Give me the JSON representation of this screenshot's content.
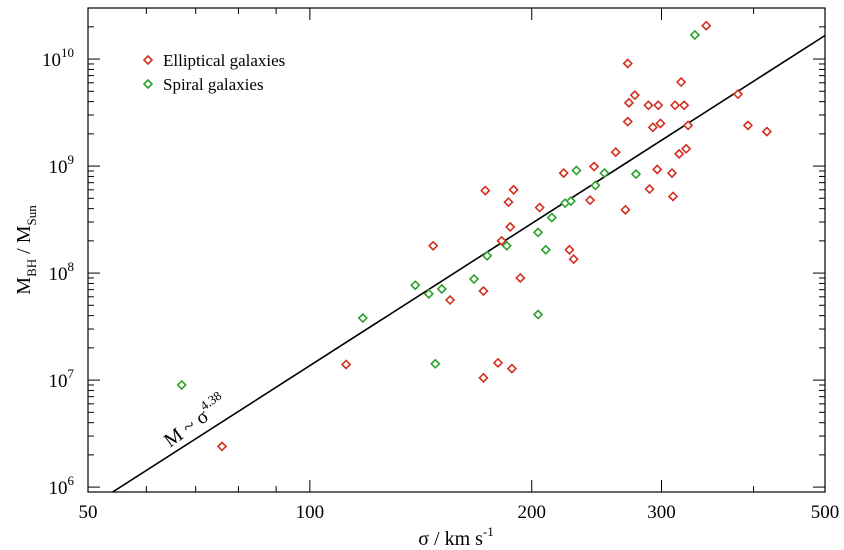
{
  "chart_data": {
    "type": "scatter",
    "title": "",
    "xlabel": "σ / km s",
    "xlabel_sup": "-1",
    "ylabel_main": "M",
    "ylabel_main_sub": "BH",
    "ylabel_sep": " / M",
    "ylabel_sep_sub": "Sun",
    "x_scale": "log",
    "y_scale": "log",
    "xlim": [
      50,
      500
    ],
    "ylim": [
      900000,
      30000000000
    ],
    "x_ticks": [
      {
        "value": 50,
        "label": "50"
      },
      {
        "value": 100,
        "label": "100"
      },
      {
        "value": 200,
        "label": "200"
      },
      {
        "value": 300,
        "label": "300"
      },
      {
        "value": 500,
        "label": "500"
      }
    ],
    "y_ticks": [
      {
        "value": 1000000,
        "base": "10",
        "exp": "6"
      },
      {
        "value": 10000000,
        "base": "10",
        "exp": "7"
      },
      {
        "value": 100000000,
        "base": "10",
        "exp": "8"
      },
      {
        "value": 1000000000,
        "base": "10",
        "exp": "9"
      },
      {
        "value": 10000000000,
        "base": "10",
        "exp": "10"
      }
    ],
    "grid": false,
    "legend_position": "top-left",
    "fit_line": {
      "label_base": "M ~ σ",
      "label_exp": "4.38",
      "exponent": 4.38,
      "points": [
        [
          54,
          900000
        ],
        [
          500,
          16600000000
        ]
      ]
    },
    "series": [
      {
        "name": "Elliptical galaxies",
        "color": "#d32f1e",
        "marker": "diamond",
        "points": [
          [
            76,
            2400000
          ],
          [
            112,
            14000000
          ],
          [
            147,
            180000000
          ],
          [
            155,
            56000000
          ],
          [
            173,
            590000000
          ],
          [
            172,
            68000000
          ],
          [
            172,
            10500000
          ],
          [
            180,
            14500000
          ],
          [
            182,
            200000000
          ],
          [
            186,
            460000000
          ],
          [
            187,
            270000000
          ],
          [
            189,
            600000000
          ],
          [
            188,
            12800000
          ],
          [
            193,
            90000000
          ],
          [
            205,
            410000000
          ],
          [
            221,
            860000000
          ],
          [
            225,
            165000000
          ],
          [
            228,
            135000000
          ],
          [
            240,
            480000000
          ],
          [
            243,
            990000000
          ],
          [
            260,
            1350000000
          ],
          [
            268,
            390000000
          ],
          [
            270,
            9100000000
          ],
          [
            271,
            3900000000
          ],
          [
            270,
            2600000000
          ],
          [
            276,
            4600000000
          ],
          [
            288,
            3700000000
          ],
          [
            289,
            610000000
          ],
          [
            292,
            2300000000
          ],
          [
            297,
            3700000000
          ],
          [
            296,
            930000000
          ],
          [
            299,
            2500000000
          ],
          [
            310,
            860000000
          ],
          [
            311,
            520000000
          ],
          [
            313,
            3700000000
          ],
          [
            317,
            1300000000
          ],
          [
            319,
            6100000000
          ],
          [
            322,
            3700000000
          ],
          [
            324,
            1450000000
          ],
          [
            326,
            2400000000
          ],
          [
            345,
            20500000000
          ],
          [
            381,
            4700000000
          ],
          [
            393,
            2400000000
          ],
          [
            417,
            2100000000
          ]
        ]
      },
      {
        "name": "Spiral galaxies",
        "color": "#2ca02c",
        "marker": "diamond",
        "points": [
          [
            67,
            9000000
          ],
          [
            118,
            38000000
          ],
          [
            139,
            77000000
          ],
          [
            145,
            64000000
          ],
          [
            148,
            14200000
          ],
          [
            151,
            71000000
          ],
          [
            167,
            88000000
          ],
          [
            174,
            145000000
          ],
          [
            185,
            180000000
          ],
          [
            204,
            240000000
          ],
          [
            204,
            41000000
          ],
          [
            209,
            165000000
          ],
          [
            213,
            330000000
          ],
          [
            222,
            450000000
          ],
          [
            226,
            470000000
          ],
          [
            230,
            910000000
          ],
          [
            244,
            660000000
          ],
          [
            251,
            860000000
          ],
          [
            277,
            840000000
          ],
          [
            333,
            16800000000
          ]
        ]
      }
    ]
  }
}
